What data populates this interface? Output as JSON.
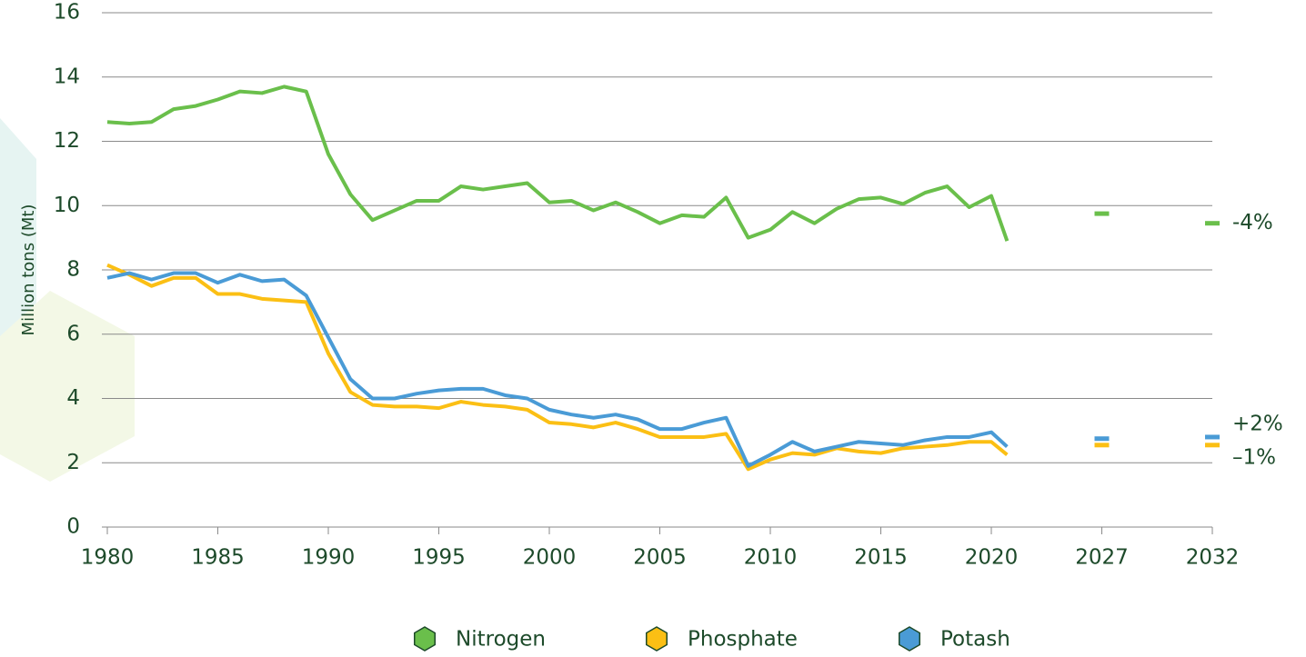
{
  "chart_data": {
    "type": "line",
    "y_label": "Million tons (Mt)",
    "x": [
      1980,
      1981,
      1982,
      1983,
      1984,
      1985,
      1986,
      1987,
      1988,
      1989,
      1990,
      1991,
      1992,
      1993,
      1994,
      1995,
      1996,
      1997,
      1998,
      1999,
      2000,
      2001,
      2002,
      2003,
      2004,
      2005,
      2006,
      2007,
      2008,
      2009,
      2010,
      2011,
      2012,
      2013,
      2014,
      2015,
      2016,
      2017,
      2018,
      2019,
      2020,
      2021
    ],
    "projection_x": [
      2027,
      2032
    ],
    "series": [
      {
        "name": "Nitrogen",
        "color": "#6abf4b",
        "values": [
          12.6,
          12.55,
          12.6,
          13.0,
          13.1,
          13.3,
          13.55,
          13.5,
          13.7,
          13.55,
          11.6,
          10.35,
          9.55,
          9.85,
          10.15,
          10.15,
          10.6,
          10.5,
          10.6,
          10.7,
          10.1,
          10.15,
          9.85,
          10.1,
          9.8,
          9.45,
          9.7,
          9.65,
          10.25,
          9.0,
          9.25,
          9.8,
          9.45,
          9.9,
          10.2,
          10.25,
          10.05,
          10.4,
          10.6,
          9.95,
          10.3,
          8.9
        ],
        "projection": [
          9.75,
          9.45
        ],
        "change": "-4%"
      },
      {
        "name": "Phosphate",
        "color": "#fbbf14",
        "values": [
          8.15,
          7.85,
          7.5,
          7.75,
          7.75,
          7.25,
          7.25,
          7.1,
          7.05,
          7.0,
          5.4,
          4.2,
          3.8,
          3.75,
          3.75,
          3.7,
          3.9,
          3.8,
          3.75,
          3.65,
          3.25,
          3.2,
          3.1,
          3.25,
          3.05,
          2.8,
          2.8,
          2.8,
          2.9,
          1.8,
          2.1,
          2.3,
          2.25,
          2.45,
          2.35,
          2.3,
          2.45,
          2.5,
          2.55,
          2.65,
          2.65,
          2.25
        ],
        "projection": [
          2.55,
          2.55
        ],
        "change": "–1%"
      },
      {
        "name": "Potash",
        "color": "#4a9bd6",
        "values": [
          7.75,
          7.9,
          7.7,
          7.9,
          7.9,
          7.6,
          7.85,
          7.65,
          7.7,
          7.2,
          5.9,
          4.6,
          4.0,
          4.0,
          4.15,
          4.25,
          4.3,
          4.3,
          4.1,
          4.0,
          3.65,
          3.5,
          3.4,
          3.5,
          3.35,
          3.05,
          3.05,
          3.25,
          3.4,
          1.9,
          2.25,
          2.65,
          2.35,
          2.5,
          2.65,
          2.6,
          2.55,
          2.7,
          2.8,
          2.8,
          2.95,
          2.5
        ],
        "projection": [
          2.75,
          2.8
        ],
        "change": "+2%"
      }
    ],
    "xlim": [
      1980,
      2032
    ],
    "xticks": [
      1980,
      1985,
      1990,
      1995,
      2000,
      2005,
      2010,
      2015,
      2020,
      2027,
      2032
    ],
    "ylim": [
      0,
      16
    ],
    "yticks": [
      0,
      2,
      4,
      6,
      8,
      10,
      12,
      14,
      16
    ],
    "grid": true,
    "legend": "bottom"
  }
}
